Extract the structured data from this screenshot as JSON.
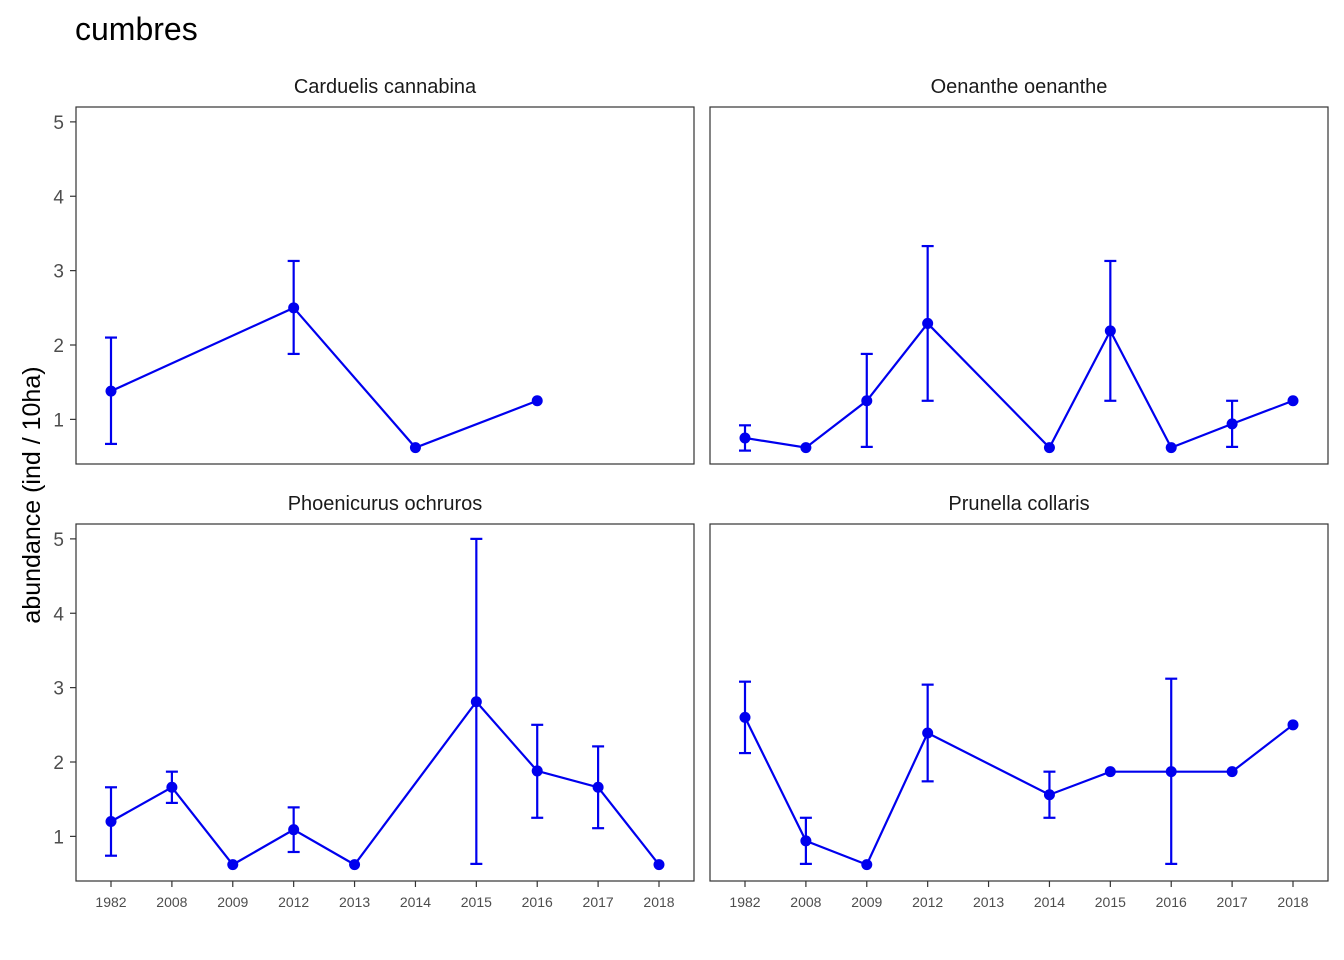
{
  "title": "cumbres",
  "ylabel": "abundance (ind / 10ha)",
  "colors": {
    "series": "#0000ee",
    "panel_border": "#333333",
    "tick": "#333333"
  },
  "chart_data": [
    {
      "type": "line",
      "panel": "Carduelis cannabina",
      "x_categories": [
        "1982",
        "2008",
        "2009",
        "2012",
        "2013",
        "2014",
        "2015",
        "2016",
        "2017",
        "2018"
      ],
      "points": [
        {
          "x": "1982",
          "y": 1.38,
          "ymin": 0.67,
          "ymax": 2.1
        },
        {
          "x": "2012",
          "y": 2.5,
          "ymin": 1.88,
          "ymax": 3.13
        },
        {
          "x": "2014",
          "y": 0.62
        },
        {
          "x": "2016",
          "y": 1.25
        }
      ],
      "ylim": [
        0.4,
        5.2
      ],
      "yticks": [
        1,
        2,
        3,
        4,
        5
      ]
    },
    {
      "type": "line",
      "panel": "Oenanthe oenanthe",
      "x_categories": [
        "1982",
        "2008",
        "2009",
        "2012",
        "2013",
        "2014",
        "2015",
        "2016",
        "2017",
        "2018"
      ],
      "points": [
        {
          "x": "1982",
          "y": 0.75,
          "ymin": 0.58,
          "ymax": 0.92
        },
        {
          "x": "2008",
          "y": 0.62
        },
        {
          "x": "2009",
          "y": 1.25,
          "ymin": 0.63,
          "ymax": 1.88
        },
        {
          "x": "2012",
          "y": 2.29,
          "ymin": 1.25,
          "ymax": 3.33
        },
        {
          "x": "2014",
          "y": 0.62
        },
        {
          "x": "2015",
          "y": 2.19,
          "ymin": 1.25,
          "ymax": 3.13
        },
        {
          "x": "2016",
          "y": 0.62
        },
        {
          "x": "2017",
          "y": 0.94,
          "ymin": 0.63,
          "ymax": 1.25
        },
        {
          "x": "2018",
          "y": 1.25
        }
      ],
      "ylim": [
        0.4,
        5.2
      ],
      "yticks": [
        1,
        2,
        3,
        4,
        5
      ]
    },
    {
      "type": "line",
      "panel": "Phoenicurus ochruros",
      "x_categories": [
        "1982",
        "2008",
        "2009",
        "2012",
        "2013",
        "2014",
        "2015",
        "2016",
        "2017",
        "2018"
      ],
      "points": [
        {
          "x": "1982",
          "y": 1.2,
          "ymin": 0.74,
          "ymax": 1.66
        },
        {
          "x": "2008",
          "y": 1.66,
          "ymin": 1.45,
          "ymax": 1.87
        },
        {
          "x": "2009",
          "y": 0.62
        },
        {
          "x": "2012",
          "y": 1.09,
          "ymin": 0.79,
          "ymax": 1.39
        },
        {
          "x": "2013",
          "y": 0.62
        },
        {
          "x": "2015",
          "y": 2.81,
          "ymin": 0.63,
          "ymax": 5.0
        },
        {
          "x": "2016",
          "y": 1.88,
          "ymin": 1.25,
          "ymax": 2.5
        },
        {
          "x": "2017",
          "y": 1.66,
          "ymin": 1.11,
          "ymax": 2.21
        },
        {
          "x": "2018",
          "y": 0.62
        }
      ],
      "ylim": [
        0.4,
        5.2
      ],
      "yticks": [
        1,
        2,
        3,
        4,
        5
      ]
    },
    {
      "type": "line",
      "panel": "Prunella collaris",
      "x_categories": [
        "1982",
        "2008",
        "2009",
        "2012",
        "2013",
        "2014",
        "2015",
        "2016",
        "2017",
        "2018"
      ],
      "points": [
        {
          "x": "1982",
          "y": 2.6,
          "ymin": 2.12,
          "ymax": 3.08
        },
        {
          "x": "2008",
          "y": 0.94,
          "ymin": 0.63,
          "ymax": 1.25
        },
        {
          "x": "2009",
          "y": 0.62
        },
        {
          "x": "2012",
          "y": 2.39,
          "ymin": 1.74,
          "ymax": 3.04
        },
        {
          "x": "2014",
          "y": 1.56,
          "ymin": 1.25,
          "ymax": 1.87
        },
        {
          "x": "2015",
          "y": 1.87
        },
        {
          "x": "2016",
          "y": 1.87,
          "ymin": 0.63,
          "ymax": 3.12
        },
        {
          "x": "2017",
          "y": 1.87
        },
        {
          "x": "2018",
          "y": 2.5
        }
      ],
      "ylim": [
        0.4,
        5.2
      ],
      "yticks": [
        1,
        2,
        3,
        4,
        5
      ]
    }
  ]
}
